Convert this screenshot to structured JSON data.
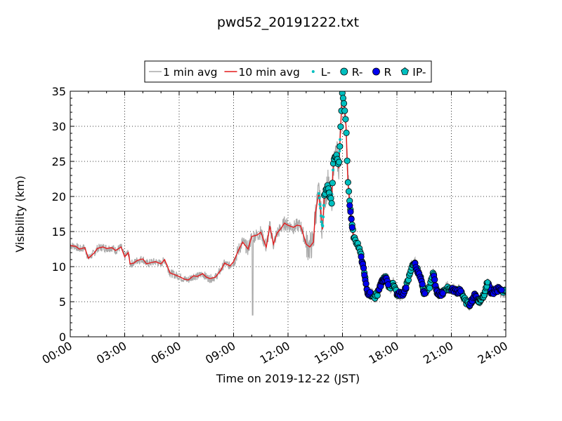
{
  "chart_data": {
    "type": "scatter",
    "title": "pwd52_20191222.txt",
    "xlabel": "Time on 2019-12-22 (JST)",
    "ylabel": "Visibility (km)",
    "xlim_hours": [
      0,
      24
    ],
    "ylim": [
      0,
      35
    ],
    "x_ticks": [
      "00:00",
      "03:00",
      "06:00",
      "09:00",
      "12:00",
      "15:00",
      "18:00",
      "21:00",
      "24:00"
    ],
    "y_ticks": [
      "0",
      "5",
      "10",
      "15",
      "20",
      "25",
      "30",
      "35"
    ],
    "grid": true,
    "legend_position": "top-center",
    "legend": [
      {
        "label": "1 min avg",
        "kind": "line",
        "color": "#aaaaaa"
      },
      {
        "label": "10 min avg",
        "kind": "line",
        "color": "#e41a1c"
      },
      {
        "label": "L-",
        "kind": "dot",
        "color": "#00bfbf"
      },
      {
        "label": "R-",
        "kind": "circle",
        "color": "#00bfbf"
      },
      {
        "label": "R",
        "kind": "circle",
        "color": "#0000ee"
      },
      {
        "label": "IP-",
        "kind": "pentagon",
        "color": "#00bfbf"
      }
    ],
    "series_10min": {
      "name": "10 min avg",
      "x_hours": [
        0,
        0.3,
        0.5,
        0.8,
        1.0,
        1.3,
        1.5,
        1.8,
        2.0,
        2.3,
        2.5,
        2.8,
        3.0,
        3.2,
        3.3,
        3.5,
        3.7,
        4.0,
        4.2,
        4.5,
        4.7,
        5.0,
        5.2,
        5.5,
        5.7,
        6.0,
        6.3,
        6.5,
        6.8,
        7.0,
        7.3,
        7.5,
        7.7,
        8.0,
        8.3,
        8.5,
        8.8,
        9.0,
        9.3,
        9.5,
        9.8,
        10.0,
        10.3,
        10.5,
        10.8,
        11.0,
        11.2,
        11.4,
        11.6,
        11.8,
        12.0,
        12.3,
        12.5,
        12.7,
        13.0,
        13.2,
        13.4,
        13.5,
        13.7,
        13.9,
        14.0,
        14.2,
        14.4,
        14.5,
        14.7,
        14.8,
        14.9,
        15.0,
        15.1,
        15.2,
        15.3,
        15.4,
        15.5,
        15.6,
        15.7,
        15.8,
        16.0,
        16.2,
        16.4,
        16.6,
        16.8,
        17.0,
        17.2,
        17.4,
        17.6,
        17.8,
        18.0,
        18.3,
        18.5,
        18.8,
        19.0,
        19.3,
        19.5,
        19.8,
        20.0,
        20.2,
        20.4,
        20.6,
        20.8,
        21.0,
        21.3,
        21.5,
        21.8,
        22.0,
        22.3,
        22.5,
        22.8,
        23.0,
        23.2,
        23.4,
        23.6,
        23.8,
        24.0
      ],
      "values": [
        13,
        12.9,
        12.5,
        12.7,
        11.2,
        11.9,
        12.6,
        12.8,
        12.6,
        12.7,
        12.3,
        12.8,
        11.4,
        12,
        10.4,
        10.5,
        10.9,
        11.1,
        10.4,
        10.6,
        10.7,
        10.4,
        11,
        9.1,
        8.9,
        8.6,
        8.2,
        8.1,
        8.7,
        8.6,
        9,
        8.5,
        8.3,
        8.5,
        9.5,
        10.5,
        10.1,
        10.7,
        12.5,
        13.5,
        12.5,
        14.3,
        14.5,
        14.9,
        12.8,
        15.8,
        13.2,
        14.8,
        15.4,
        16.2,
        15.9,
        15.6,
        15.9,
        15.8,
        13.2,
        12.8,
        13.5,
        17.5,
        20.5,
        15.3,
        20,
        21.7,
        19,
        25,
        26,
        24,
        30,
        35,
        33,
        30,
        22,
        19,
        16.5,
        14.5,
        13.6,
        13.4,
        12,
        9,
        6.2,
        6,
        5.7,
        6.5,
        8,
        8.5,
        7,
        7.5,
        6.2,
        6,
        7,
        10,
        10.3,
        8.5,
        6.2,
        7,
        9,
        6.5,
        6,
        6.5,
        7,
        6.8,
        6.4,
        6.6,
        5,
        4.5,
        6,
        5,
        6,
        7.8,
        6.3,
        6.5,
        6.8,
        6.4,
        6.5
      ]
    },
    "precip_events": [
      {
        "type": "L-",
        "x_start": 13.7,
        "x_end": 14.9
      },
      {
        "type": "R-",
        "x_start": 14.0,
        "x_end": 24.0
      },
      {
        "type": "R",
        "x_start": 15.4,
        "x_end": 23.8
      },
      {
        "type": "IP-",
        "x_start": 22.5,
        "x_end": 23.0
      }
    ]
  }
}
